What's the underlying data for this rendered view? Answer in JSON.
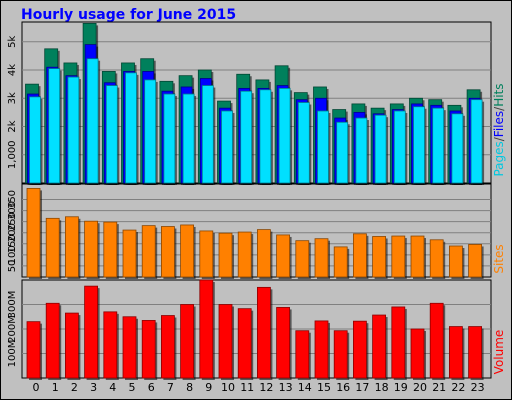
{
  "title": "Hourly usage for June 2015",
  "colors": {
    "background": "#c0c0c0",
    "hits": "#00805c",
    "files": "#0000ff",
    "pages": "#00e0ff",
    "sites": "#ff8000",
    "volume": "#ff0000",
    "title": "#0000ff"
  },
  "panels": {
    "top": {
      "tick_labels": [
        "1,000",
        "2k",
        "3k",
        "4k",
        "5k"
      ],
      "side_label_parts": [
        {
          "text": "Pages",
          "color": "#00c8e0"
        },
        {
          "text": "/",
          "color": "#404040"
        },
        {
          "text": "Files",
          "color": "#0000ff"
        },
        {
          "text": "/",
          "color": "#404040"
        },
        {
          "text": "Hits",
          "color": "#00805c"
        }
      ]
    },
    "middle": {
      "tick_labels": [
        "50",
        "100",
        "150",
        "200",
        "250",
        "300",
        "350"
      ],
      "side_label": "Sites"
    },
    "bottom": {
      "tick_labels": [
        "100M",
        "200M",
        "300M"
      ],
      "side_label": "Volume"
    }
  },
  "chart_data": [
    {
      "type": "bar",
      "title": "Hourly usage for June 2015",
      "categories": [
        "0",
        "1",
        "2",
        "3",
        "4",
        "5",
        "6",
        "7",
        "8",
        "9",
        "10",
        "11",
        "12",
        "13",
        "14",
        "15",
        "16",
        "17",
        "18",
        "19",
        "20",
        "21",
        "22",
        "23"
      ],
      "ylim": [
        0,
        5700
      ],
      "grid": true,
      "series": [
        {
          "name": "Hits",
          "values": [
            3500,
            4750,
            4250,
            5650,
            3950,
            4250,
            4400,
            3600,
            3800,
            4000,
            2900,
            3850,
            3650,
            4150,
            3200,
            3400,
            2600,
            2800,
            2650,
            2800,
            3000,
            2950,
            2750,
            3300
          ]
        },
        {
          "name": "Files",
          "values": [
            3150,
            4100,
            3800,
            4900,
            3550,
            3950,
            3950,
            3250,
            3400,
            3700,
            2650,
            3350,
            3350,
            3450,
            2950,
            3000,
            2300,
            2500,
            2450,
            2600,
            2800,
            2750,
            2550,
            3000
          ]
        },
        {
          "name": "Pages",
          "values": [
            3050,
            4050,
            3750,
            4400,
            3450,
            3900,
            3650,
            3150,
            3150,
            3450,
            2550,
            3250,
            3300,
            3350,
            2850,
            2550,
            2150,
            2300,
            2400,
            2550,
            2700,
            2650,
            2450,
            2950
          ]
        }
      ]
    },
    {
      "type": "bar",
      "categories": [
        "0",
        "1",
        "2",
        "3",
        "4",
        "5",
        "6",
        "7",
        "8",
        "9",
        "10",
        "11",
        "12",
        "13",
        "14",
        "15",
        "16",
        "17",
        "18",
        "19",
        "20",
        "21",
        "22",
        "23"
      ],
      "ylim": [
        0,
        420
      ],
      "grid": true,
      "series": [
        {
          "name": "Sites",
          "values": [
            400,
            265,
            272,
            252,
            248,
            212,
            232,
            228,
            235,
            208,
            198,
            203,
            214,
            190,
            164,
            173,
            136,
            195,
            183,
            185,
            185,
            168,
            140,
            147
          ]
        }
      ]
    },
    {
      "type": "bar",
      "categories": [
        "0",
        "1",
        "2",
        "3",
        "4",
        "5",
        "6",
        "7",
        "8",
        "9",
        "10",
        "11",
        "12",
        "13",
        "14",
        "15",
        "16",
        "17",
        "18",
        "19",
        "20",
        "21",
        "22",
        "23"
      ],
      "ylim": [
        0,
        400
      ],
      "grid": true,
      "series": [
        {
          "name": "Volume",
          "values": [
            230,
            305,
            265,
            375,
            270,
            250,
            235,
            255,
            300,
            400,
            300,
            283,
            370,
            288,
            193,
            233,
            193,
            232,
            257,
            290,
            200,
            305,
            210,
            210
          ]
        }
      ]
    }
  ]
}
